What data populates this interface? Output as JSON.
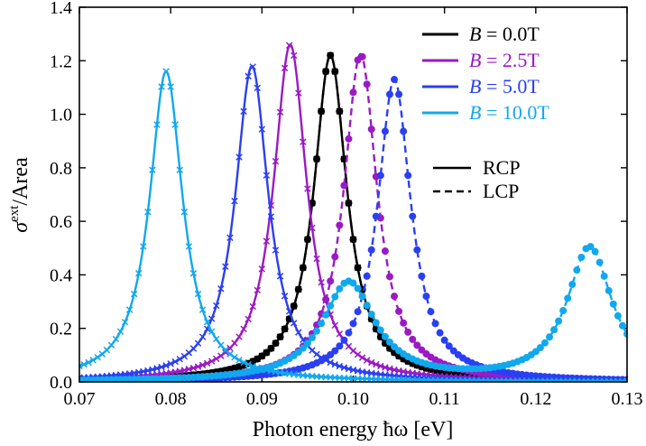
{
  "chart_data": {
    "type": "line",
    "xlabel": "Photon energy ħω [eV]",
    "ylabel": "σext / Area",
    "ylabel_main": "σ",
    "ylabel_sup": "ext",
    "ylabel_tail": "/Area",
    "xlim": [
      0.07,
      0.13
    ],
    "ylim": [
      0.0,
      1.4
    ],
    "xticks": [
      0.07,
      0.08,
      0.09,
      0.1,
      0.11,
      0.12,
      0.13
    ],
    "xtick_labels": [
      "0.07",
      "0.08",
      "0.09",
      "0.10",
      "0.11",
      "0.12",
      "0.13"
    ],
    "yticks": [
      0.0,
      0.2,
      0.4,
      0.6,
      0.8,
      1.0,
      1.2,
      1.4
    ],
    "ytick_labels": [
      "0.0",
      "0.2",
      "0.4",
      "0.6",
      "0.8",
      "1.0",
      "1.2",
      "1.4"
    ],
    "grid": false,
    "legend_position": "top-right",
    "series": [
      {
        "name": "B = 0.0T",
        "field_label": "B",
        "field_value": "= 0.0T",
        "color": "#000000",
        "rcp": [
          {
            "x0": 0.0975,
            "peak": 1.22,
            "hw": 0.0022
          }
        ],
        "lcp": [
          {
            "x0": 0.0975,
            "peak": 1.22,
            "hw": 0.0022
          }
        ]
      },
      {
        "name": "B = 2.5T",
        "field_label": "B",
        "field_value": "= 2.5T",
        "color": "#9a1ac4",
        "rcp": [
          {
            "x0": 0.0931,
            "peak": 1.26,
            "hw": 0.0022
          }
        ],
        "lcp": [
          {
            "x0": 0.1008,
            "peak": 1.225,
            "hw": 0.0022
          }
        ]
      },
      {
        "name": "B = 5.0T",
        "field_label": "B",
        "field_value": "= 5.0T",
        "color": "#2b3ff2",
        "rcp": [
          {
            "x0": 0.0889,
            "peak": 1.18,
            "hw": 0.0022
          }
        ],
        "lcp": [
          {
            "x0": 0.1045,
            "peak": 1.13,
            "hw": 0.0022
          }
        ]
      },
      {
        "name": "B = 10.0T",
        "field_label": "B",
        "field_value": "= 10.0T",
        "color": "#11a8ee",
        "rcp": [
          {
            "x0": 0.0795,
            "peak": 1.16,
            "hw": 0.0022
          }
        ],
        "lcp": [
          {
            "x0": 0.0995,
            "peak": 0.37,
            "hw": 0.0035
          },
          {
            "x0": 0.1259,
            "peak": 0.5,
            "hw": 0.003
          }
        ]
      }
    ],
    "polarization_legend": [
      {
        "label": "RCP",
        "style": "solid",
        "marker": "x"
      },
      {
        "label": "LCP",
        "style": "dashed",
        "marker": "o"
      }
    ]
  }
}
